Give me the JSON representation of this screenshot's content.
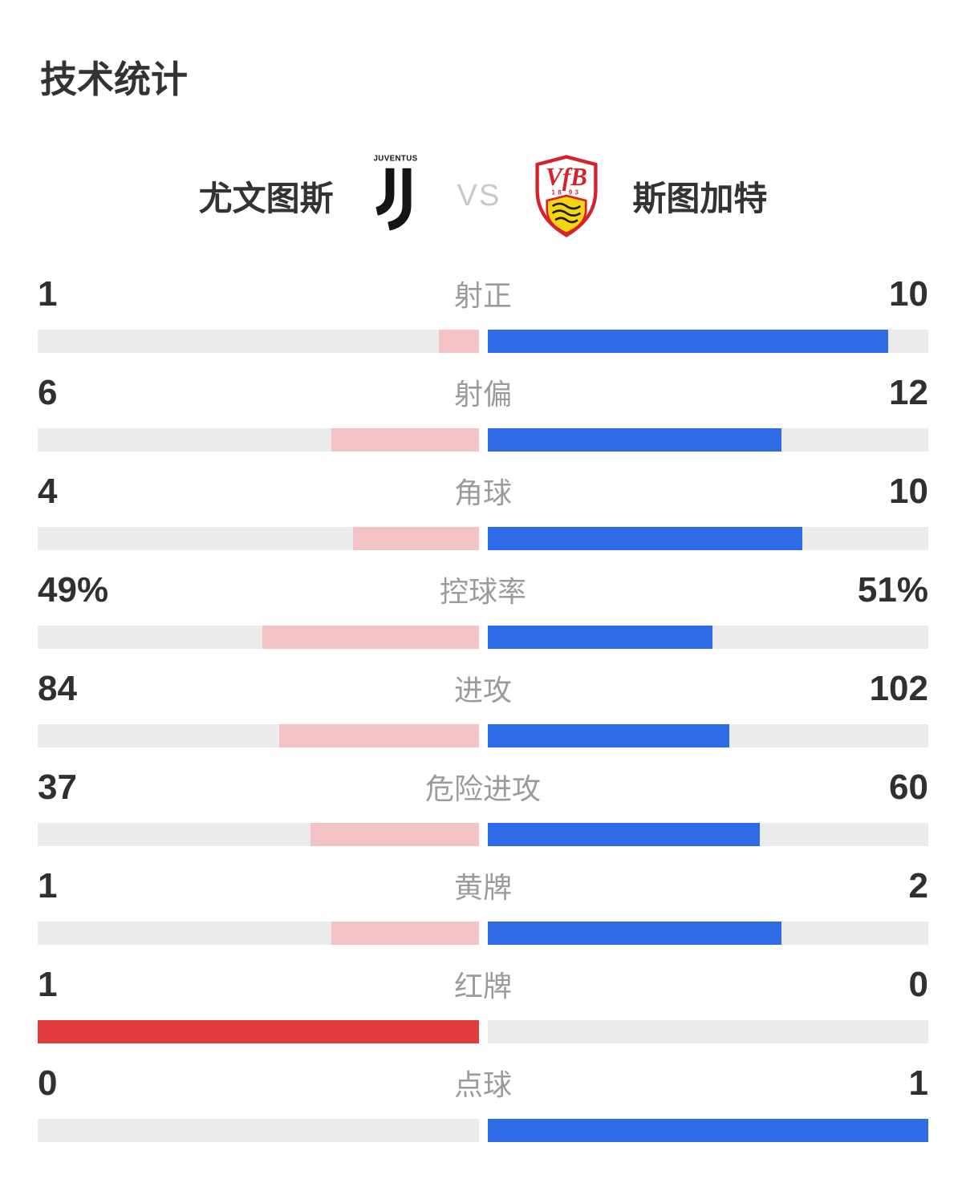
{
  "title": "技术统计",
  "header": {
    "home": {
      "name": "尤文图斯",
      "logo_icon": "juventus-logo",
      "wordmark": "JUVENTUS"
    },
    "vs": "VS",
    "away": {
      "name": "斯图加特",
      "logo_icon": "vfb-stuttgart-logo",
      "badge_text": "VfB",
      "badge_year": "18 93"
    }
  },
  "colors": {
    "home_bar": "#f4c3c6",
    "home_bar_strong": "#e03c3c",
    "away_bar": "#2d6ce4",
    "track": "#ececec",
    "value_text": "#303030",
    "label_text": "#9b9b9b",
    "vs_text": "#c9c9c9",
    "juventus_black": "#141414",
    "vfb_red": "#d6222a",
    "vfb_yellow": "#f4d512"
  },
  "stats": [
    {
      "label": "射正",
      "home_display": "1",
      "away_display": "10",
      "home": 1,
      "away": 10,
      "home_color": "#f4c3c6",
      "away_color": "#2d6ce4"
    },
    {
      "label": "射偏",
      "home_display": "6",
      "away_display": "12",
      "home": 6,
      "away": 12,
      "home_color": "#f4c3c6",
      "away_color": "#2d6ce4"
    },
    {
      "label": "角球",
      "home_display": "4",
      "away_display": "10",
      "home": 4,
      "away": 10,
      "home_color": "#f4c3c6",
      "away_color": "#2d6ce4"
    },
    {
      "label": "控球率",
      "home_display": "49%",
      "away_display": "51%",
      "home": 49,
      "away": 51,
      "home_color": "#f4c3c6",
      "away_color": "#2d6ce4"
    },
    {
      "label": "进攻",
      "home_display": "84",
      "away_display": "102",
      "home": 84,
      "away": 102,
      "home_color": "#f4c3c6",
      "away_color": "#2d6ce4"
    },
    {
      "label": "危险进攻",
      "home_display": "37",
      "away_display": "60",
      "home": 37,
      "away": 60,
      "home_color": "#f4c3c6",
      "away_color": "#2d6ce4"
    },
    {
      "label": "黄牌",
      "home_display": "1",
      "away_display": "2",
      "home": 1,
      "away": 2,
      "home_color": "#f4c3c6",
      "away_color": "#2d6ce4"
    },
    {
      "label": "红牌",
      "home_display": "1",
      "away_display": "0",
      "home": 1,
      "away": 0,
      "home_color": "#e03c3c",
      "away_color": "#2d6ce4"
    },
    {
      "label": "点球",
      "home_display": "0",
      "away_display": "1",
      "home": 0,
      "away": 1,
      "home_color": "#f4c3c6",
      "away_color": "#2d6ce4"
    }
  ],
  "chart_data": {
    "type": "bar",
    "title": "技术统计",
    "orientation": "horizontal-paired-from-center",
    "categories": [
      "射正",
      "射偏",
      "角球",
      "控球率",
      "进攻",
      "危险进攻",
      "黄牌",
      "红牌",
      "点球"
    ],
    "series": [
      {
        "name": "尤文图斯",
        "values": [
          1,
          6,
          4,
          49,
          84,
          37,
          1,
          1,
          0
        ],
        "color": "#f4c3c6",
        "strong_color_rows": [
          "红牌"
        ],
        "strong_color": "#e03c3c"
      },
      {
        "name": "斯图加特",
        "values": [
          10,
          12,
          10,
          51,
          102,
          60,
          2,
          0,
          1
        ],
        "color": "#2d6ce4"
      }
    ],
    "value_format": {
      "控球率": "percent"
    },
    "fill_rule": "each side fills value/(home+away) of its half track, growing outward from center",
    "grid": false,
    "legend_position": "top-center (team names with crests)"
  }
}
